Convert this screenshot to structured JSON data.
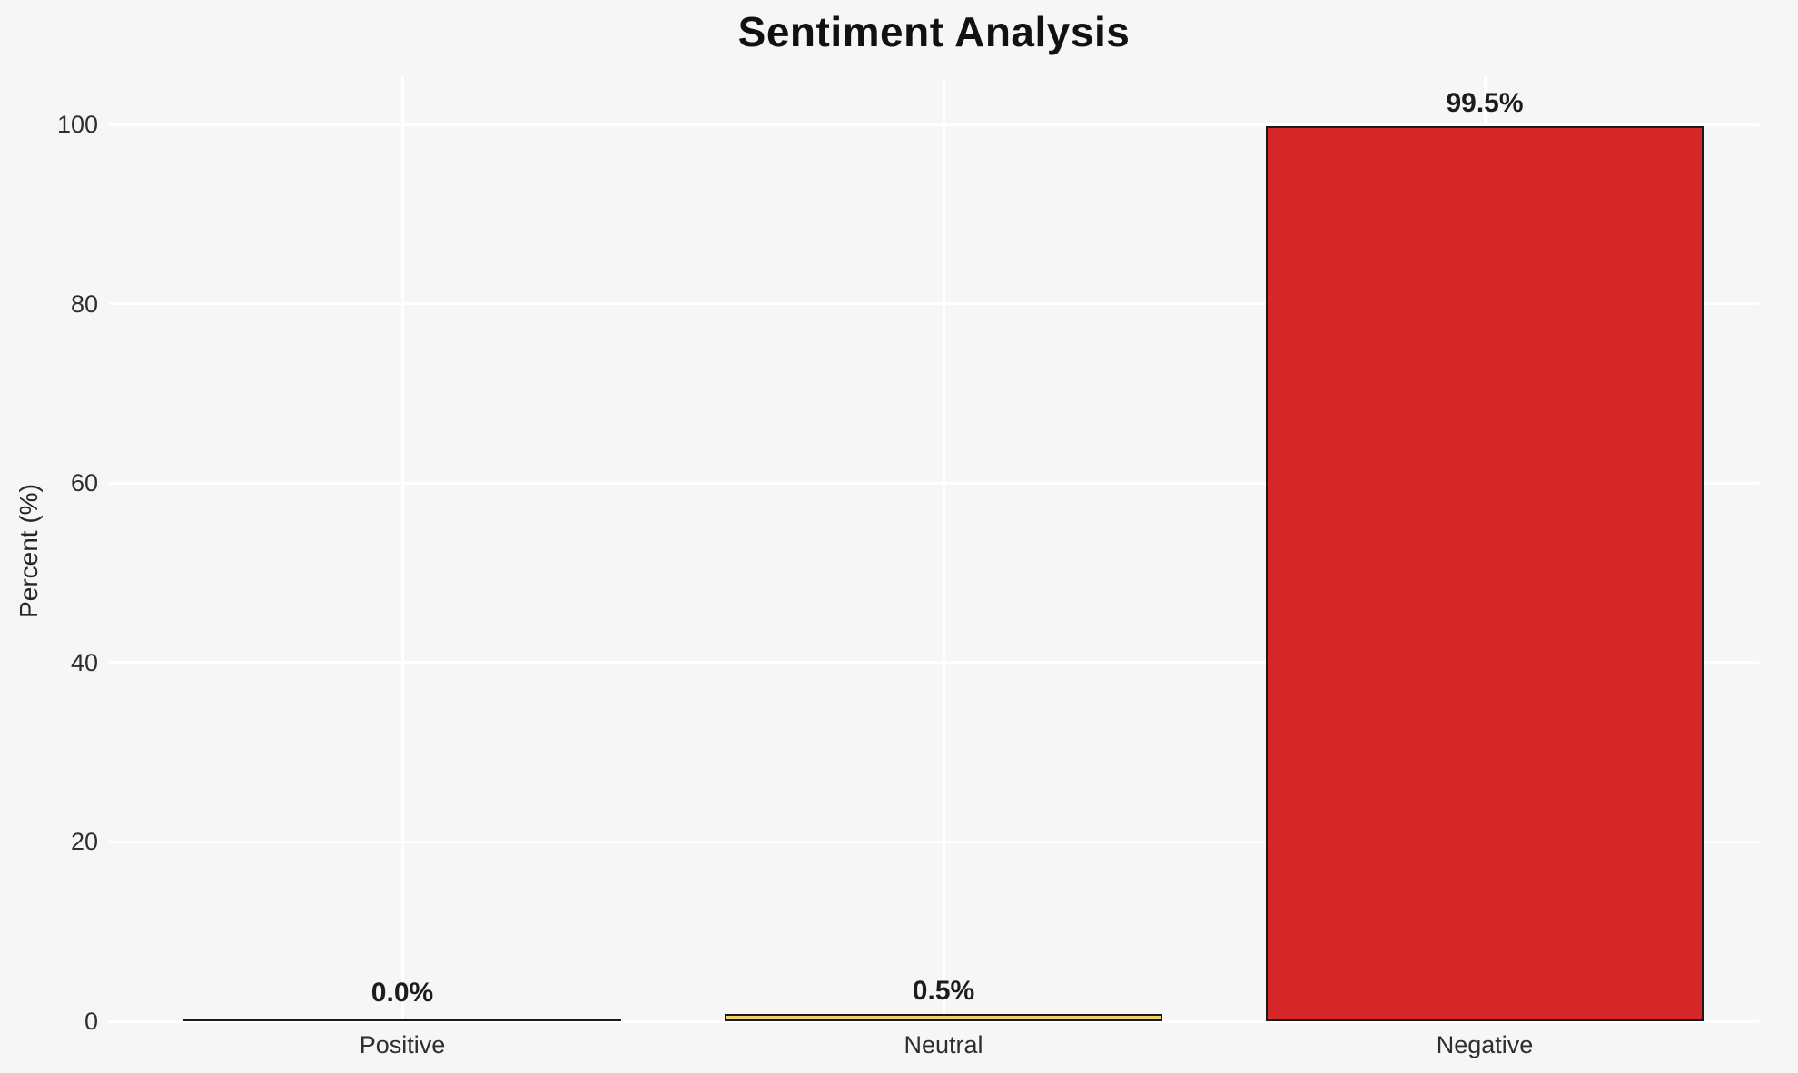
{
  "chart_data": {
    "type": "bar",
    "title": "Sentiment Analysis",
    "xlabel": "",
    "ylabel": "Percent (%)",
    "categories": [
      "Positive",
      "Neutral",
      "Negative"
    ],
    "values": [
      0.0,
      0.5,
      99.5
    ],
    "value_labels": [
      "0.0%",
      "0.5%",
      "99.5%"
    ],
    "bar_colors": [
      null,
      "#eed272",
      "#d62728"
    ],
    "bar_edge_color": "#1a1a1a",
    "yticks": [
      0,
      20,
      40,
      60,
      80,
      100
    ],
    "ylim": [
      0,
      105
    ],
    "grid": true,
    "grid_color": "#ffffff",
    "background_color": "#f6f6f7",
    "legend_position": "none"
  }
}
